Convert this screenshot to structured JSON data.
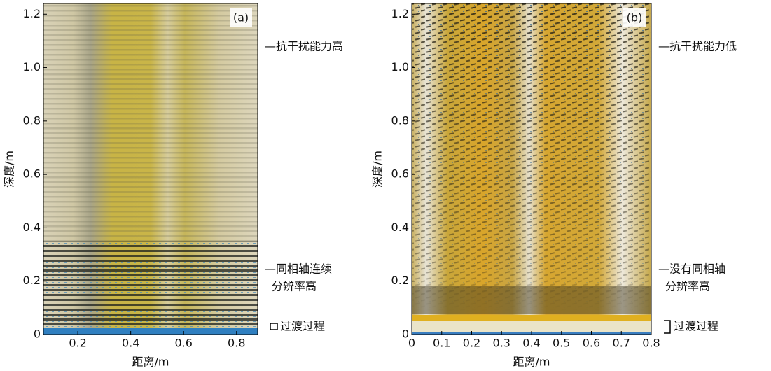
{
  "chart_data": [
    {
      "type": "image",
      "panel_label": "(a)",
      "xlabel": "距离/m",
      "ylabel": "深度/m",
      "xlim": [
        0.07,
        0.88
      ],
      "ylim": [
        0,
        1.24
      ],
      "xticks": [
        0.2,
        0.4,
        0.6,
        0.8
      ],
      "yticks": [
        0,
        0.2,
        0.4,
        0.6,
        0.8,
        {
          "value": 1,
          "label": "1.0"
        },
        1.2
      ],
      "annotations": [
        "—抗干扰能力高",
        "—同相轴连续",
        "分辨率高",
        "过渡过程"
      ]
    },
    {
      "type": "image",
      "panel_label": "(b)",
      "xlabel": "距离/m",
      "ylabel": "深度/m",
      "xlim": [
        0,
        0.8
      ],
      "ylim": [
        0,
        1.24
      ],
      "xticks": [
        0,
        0.1,
        0.2,
        0.3,
        0.4,
        0.5,
        0.6,
        0.7,
        0.8
      ],
      "yticks": [
        0,
        0.2,
        0.4,
        0.6,
        0.8,
        {
          "value": 1,
          "label": "1.0"
        },
        1.2
      ],
      "annotations": [
        "—抗干扰能力低",
        "—没有同相轴",
        "分辨率高",
        "过渡过程"
      ]
    }
  ]
}
